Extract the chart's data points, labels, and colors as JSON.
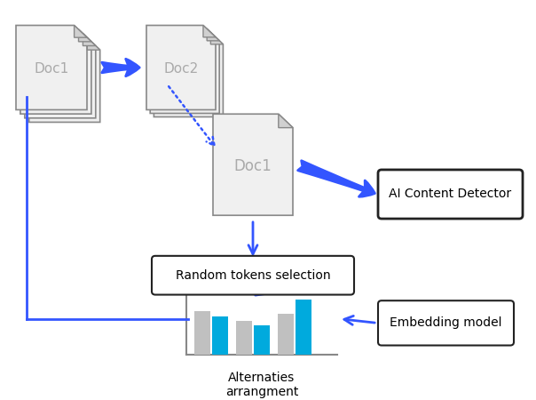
{
  "bg_color": "#ffffff",
  "blue": "#0000ff",
  "light_blue": "#4488ff",
  "arrow_blue": "#3355ff",
  "doc_fill": "#f0f0f0",
  "doc_edge": "#888888",
  "box_edge": "#222222",
  "gray_bar": "#c0c0c0",
  "cyan_bar": "#00aadd",
  "text_doc1_left": "Doc1",
  "text_doc2": "Doc2",
  "text_doc1_right": "Doc1",
  "text_random": "Random tokens selection",
  "text_ai": "AI Content Detector",
  "text_embedding": "Embedding model",
  "text_alternaties": "Alternaties\narrangment"
}
